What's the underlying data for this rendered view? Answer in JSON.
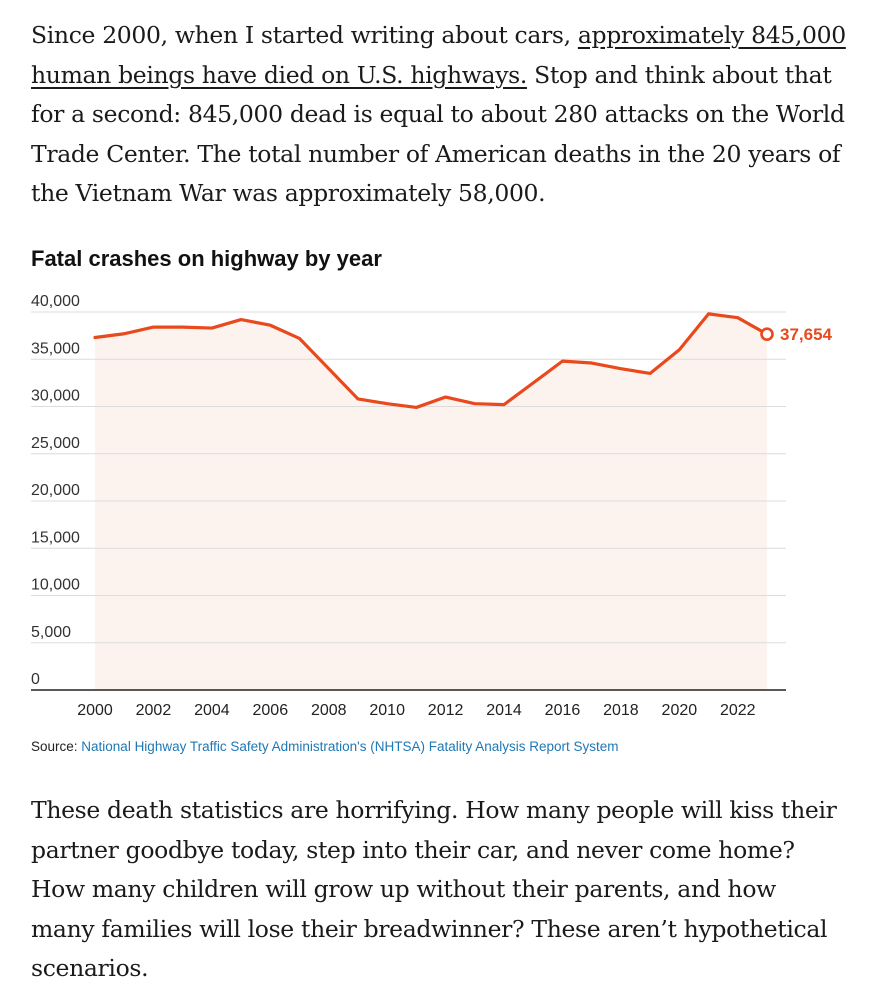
{
  "article": {
    "para1": {
      "before": "Since 2000, when I started writing about cars, ",
      "link": "approximately 845,000 human beings have died on U.S. highways.",
      "after": " Stop and think about that for a second: 845,000 dead is equal to about 280 attacks on the World Trade Center. The total number of American deaths in the 20 years of the Vietnam War was approximately 58,000."
    },
    "para2": "These death statistics are horrifying. How many people will kiss their partner goodbye today, step into their car, and never come home? How many children will grow up without their parents, and how many families will lose their breadwinner? These aren’t hypothetical scenarios."
  },
  "source": {
    "prefix": "Source: ",
    "link": "National Highway Traffic Safety Administration's (NHTSA) Fatality Analysis Report System"
  },
  "chart_data": {
    "type": "area",
    "title": "Fatal crashes on highway by year",
    "xlabel": "",
    "ylabel": "",
    "x": [
      2000,
      2001,
      2002,
      2003,
      2004,
      2005,
      2006,
      2007,
      2008,
      2009,
      2010,
      2011,
      2012,
      2013,
      2014,
      2015,
      2016,
      2017,
      2018,
      2019,
      2020,
      2021,
      2022,
      2023
    ],
    "values": [
      37300,
      37700,
      38400,
      38400,
      38300,
      39200,
      38600,
      37200,
      34000,
      30800,
      30300,
      29900,
      31000,
      30300,
      30200,
      32500,
      34800,
      34600,
      34000,
      33500,
      36000,
      39800,
      39400,
      37654
    ],
    "ylim": [
      0,
      40000
    ],
    "xlim": [
      2000,
      2023
    ],
    "yticks": [
      "0",
      "5,000",
      "10,000",
      "15,000",
      "20,000",
      "25,000",
      "30,000",
      "35,000",
      "40,000"
    ],
    "xticks": [
      "2000",
      "2002",
      "2004",
      "2006",
      "2008",
      "2010",
      "2012",
      "2014",
      "2016",
      "2018",
      "2020",
      "2022"
    ],
    "end_label": "37,654",
    "grid": true,
    "legend": "none",
    "line_color": "#e8491d",
    "fill_color": "#fdf3ee",
    "grid_color": "#dcdcdc",
    "axis_color": "#222222"
  }
}
